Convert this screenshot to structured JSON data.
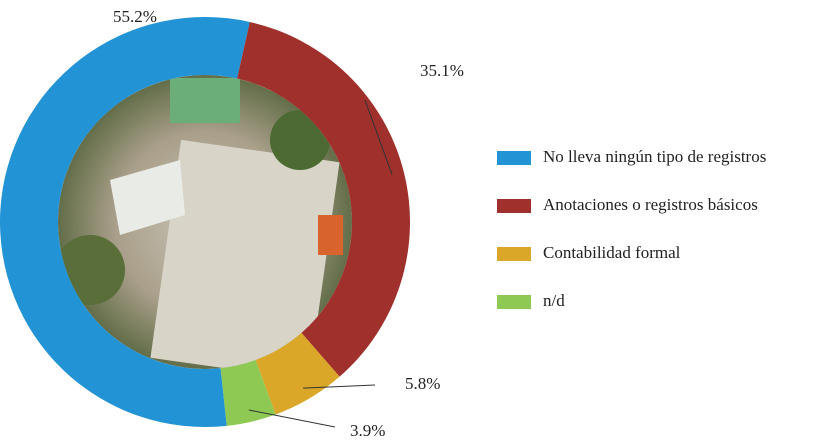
{
  "chart_data": {
    "type": "donut",
    "categories": [
      "No lleva ningún tipo de registros",
      "Anotaciones o registros básicos",
      "Contabilidad formal",
      "n/d"
    ],
    "values": [
      55.2,
      35.1,
      5.8,
      3.9
    ],
    "value_labels": [
      "55.2%",
      "35.1%",
      "5.8%",
      "3.9%"
    ],
    "colors": [
      "#2293d4",
      "#a0302c",
      "#dba728",
      "#8dc953"
    ],
    "legend": "right"
  }
}
